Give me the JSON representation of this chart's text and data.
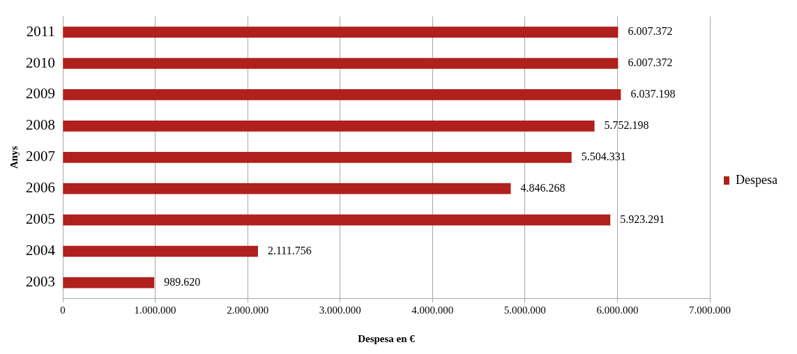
{
  "chart_data": {
    "type": "bar",
    "orientation": "horizontal",
    "xlabel": "Despesa en €",
    "ylabel": "Anys",
    "categories": [
      "2011",
      "2010",
      "2009",
      "2008",
      "2007",
      "2006",
      "2005",
      "2004",
      "2003"
    ],
    "series": [
      {
        "name": "Despesa",
        "color": "#b0201c",
        "values": [
          6007372,
          6007372,
          6037198,
          5752198,
          5504331,
          4846268,
          5923291,
          2111756,
          989620
        ],
        "value_labels": [
          "6.007.372",
          "6.007.372",
          "6.037.198",
          "5.752.198",
          "5.504.331",
          "4.846.268",
          "5.923.291",
          "2.111.756",
          "989.620"
        ]
      }
    ],
    "xlim": [
      0,
      7000000
    ],
    "xticks": [
      0,
      {
        "value": 1000000,
        "label": "1.000.000"
      },
      {
        "value": 2000000,
        "label": "2.000.000"
      },
      {
        "value": 3000000,
        "label": "3.000.000"
      },
      {
        "value": 4000000,
        "label": "4.000.000"
      },
      {
        "value": 5000000,
        "label": "5.000.000"
      },
      {
        "value": 6000000,
        "label": "6.000.000"
      },
      {
        "value": 7000000,
        "label": "7.000.000"
      }
    ],
    "grid": "x",
    "legend": "right"
  }
}
